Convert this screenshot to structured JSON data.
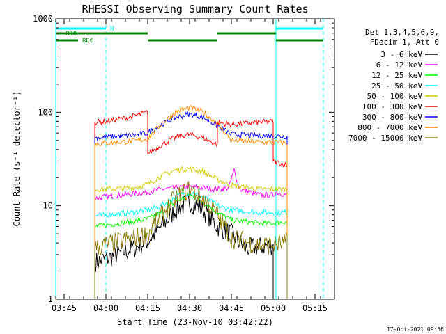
{
  "chart_data": {
    "type": "line",
    "title": "RHESSI Observing Summary Count Rates",
    "xlabel": "Start Time (23-Nov-10 03:42:22)",
    "ylabel": "Count Rate (s⁻¹ detector⁻¹)",
    "yscale": "log",
    "ylim": [
      1,
      1000
    ],
    "xlim": [
      "03:42",
      "05:22"
    ],
    "x_ticks": [
      "03:45",
      "04:00",
      "04:15",
      "04:30",
      "04:45",
      "05:00",
      "05:15"
    ],
    "y_ticks": [
      "1",
      "10",
      "100",
      "1000"
    ],
    "footer_date": "17-Oct-2021 09:56",
    "legend": {
      "header_lines": [
        "Det 1,3,4,5,6,9,",
        "FDecim 1, Att 0"
      ],
      "placement": "right"
    },
    "series": [
      {
        "name": "3 - 6 keV",
        "color": "#000000",
        "points": [
          [
            "03:56",
            2.5
          ],
          [
            "04:00",
            2.7
          ],
          [
            "04:10",
            3.5
          ],
          [
            "04:15",
            4.2
          ],
          [
            "04:20",
            6
          ],
          [
            "04:25",
            9
          ],
          [
            "04:30",
            11
          ],
          [
            "04:35",
            9
          ],
          [
            "04:40",
            6
          ],
          [
            "04:45",
            5
          ],
          [
            "04:50",
            3.5
          ],
          [
            "05:00",
            3.8
          ]
        ]
      },
      {
        "name": "6 - 12 keV",
        "color": "#ff00ff",
        "points": [
          [
            "03:56",
            12
          ],
          [
            "04:00",
            12.5
          ],
          [
            "04:15",
            14
          ],
          [
            "04:20",
            15
          ],
          [
            "04:30",
            16
          ],
          [
            "04:40",
            15
          ],
          [
            "04:44",
            15.5
          ],
          [
            "04:46",
            24
          ],
          [
            "04:48",
            15
          ],
          [
            "04:55",
            13
          ],
          [
            "05:00",
            13
          ],
          [
            "05:01",
            14
          ],
          [
            "05:05",
            13
          ]
        ]
      },
      {
        "name": "12 - 25 keV",
        "color": "#00ff00",
        "points": [
          [
            "03:56",
            6
          ],
          [
            "04:00",
            6.2
          ],
          [
            "04:10",
            6.8
          ],
          [
            "04:15",
            7.2
          ],
          [
            "04:20",
            8.5
          ],
          [
            "04:25",
            11
          ],
          [
            "04:30",
            13
          ],
          [
            "04:35",
            11
          ],
          [
            "04:40",
            8.5
          ],
          [
            "04:45",
            7
          ],
          [
            "04:55",
            6.5
          ],
          [
            "05:00",
            6.5
          ],
          [
            "05:05",
            6.8
          ]
        ]
      },
      {
        "name": "25 - 50 keV",
        "color": "#00ffff",
        "points": [
          [
            "03:56",
            7.8
          ],
          [
            "04:00",
            8
          ],
          [
            "04:10",
            8.5
          ],
          [
            "04:15",
            9
          ],
          [
            "04:20",
            10
          ],
          [
            "04:25",
            12.5
          ],
          [
            "04:30",
            14
          ],
          [
            "04:35",
            12.5
          ],
          [
            "04:40",
            10
          ],
          [
            "04:45",
            9
          ],
          [
            "04:55",
            8.5
          ],
          [
            "05:00",
            8.5
          ],
          [
            "05:05",
            8.5
          ]
        ]
      },
      {
        "name": "50 - 100 keV",
        "color": "#d4c800",
        "points": [
          [
            "03:56",
            15
          ],
          [
            "04:00",
            15
          ],
          [
            "04:10",
            15.5
          ],
          [
            "04:15",
            17
          ],
          [
            "04:20",
            21
          ],
          [
            "04:25",
            24
          ],
          [
            "04:30",
            25
          ],
          [
            "04:35",
            23
          ],
          [
            "04:40",
            19
          ],
          [
            "04:45",
            16.5
          ],
          [
            "04:55",
            15
          ],
          [
            "05:00",
            15
          ],
          [
            "05:05",
            15
          ]
        ]
      },
      {
        "name": "100 - 300 keV",
        "color": "#ff0000",
        "points": [
          [
            "03:56",
            78
          ],
          [
            "04:00",
            80
          ],
          [
            "04:08",
            88
          ],
          [
            "04:15",
            100
          ],
          [
            "04:15",
            36
          ],
          [
            "04:20",
            45
          ],
          [
            "04:25",
            54
          ],
          [
            "04:30",
            58
          ],
          [
            "04:35",
            53
          ],
          [
            "04:40",
            45
          ],
          [
            "04:40",
            78
          ],
          [
            "04:45",
            74
          ],
          [
            "04:55",
            78
          ],
          [
            "05:00",
            80
          ],
          [
            "05:00",
            30
          ],
          [
            "05:05",
            27
          ]
        ]
      },
      {
        "name": "300 - 800 keV",
        "color": "#0000ff",
        "points": [
          [
            "03:56",
            53
          ],
          [
            "04:00",
            54
          ],
          [
            "04:10",
            57
          ],
          [
            "04:15",
            60
          ],
          [
            "04:20",
            74
          ],
          [
            "04:25",
            88
          ],
          [
            "04:30",
            96
          ],
          [
            "04:35",
            88
          ],
          [
            "04:40",
            72
          ],
          [
            "04:45",
            58
          ],
          [
            "04:55",
            56
          ],
          [
            "05:00",
            56
          ],
          [
            "05:05",
            55
          ]
        ]
      },
      {
        "name": "800 - 7000 keV",
        "color": "#ff8c00",
        "points": [
          [
            "03:56",
            46
          ],
          [
            "04:00",
            47
          ],
          [
            "04:10",
            49
          ],
          [
            "04:15",
            52
          ],
          [
            "04:20",
            76
          ],
          [
            "04:25",
            100
          ],
          [
            "04:30",
            112
          ],
          [
            "04:35",
            100
          ],
          [
            "04:40",
            76
          ],
          [
            "04:45",
            50
          ],
          [
            "04:55",
            48
          ],
          [
            "05:00",
            48
          ],
          [
            "05:05",
            47
          ]
        ]
      },
      {
        "name": "7000 - 15000 keV",
        "color": "#8b7d10",
        "points": [
          [
            "03:56",
            3.5
          ],
          [
            "04:00",
            3.8
          ],
          [
            "04:10",
            4.5
          ],
          [
            "04:15",
            5
          ],
          [
            "04:20",
            8
          ],
          [
            "04:25",
            12
          ],
          [
            "04:30",
            15
          ],
          [
            "04:35",
            12
          ],
          [
            "04:40",
            8
          ],
          [
            "04:45",
            4.5
          ],
          [
            "04:55",
            3.8
          ],
          [
            "05:00",
            3.8
          ],
          [
            "05:05",
            4
          ]
        ]
      }
    ],
    "state_bars": [
      {
        "label": "N",
        "color": "#00ffff",
        "segments": [
          [
            "03:42",
            "04:00"
          ],
          [
            "05:01",
            "05:18"
          ]
        ]
      },
      {
        "label": "RD0",
        "color": "#008000",
        "segments": [
          [
            "03:42",
            "04:15"
          ],
          [
            "04:40",
            "05:01"
          ]
        ]
      },
      {
        "label": "RD6",
        "color": "#008000",
        "segments": [
          [
            "03:42",
            "03:50"
          ],
          [
            "04:15",
            "04:40"
          ],
          [
            "05:01",
            "05:18"
          ]
        ]
      }
    ],
    "vlines": [
      {
        "time": "03:42",
        "style": "solid"
      },
      {
        "time": "04:00",
        "style": "dashed"
      },
      {
        "time": "05:01",
        "style": "solid"
      },
      {
        "time": "05:18",
        "style": "dashed"
      }
    ]
  }
}
